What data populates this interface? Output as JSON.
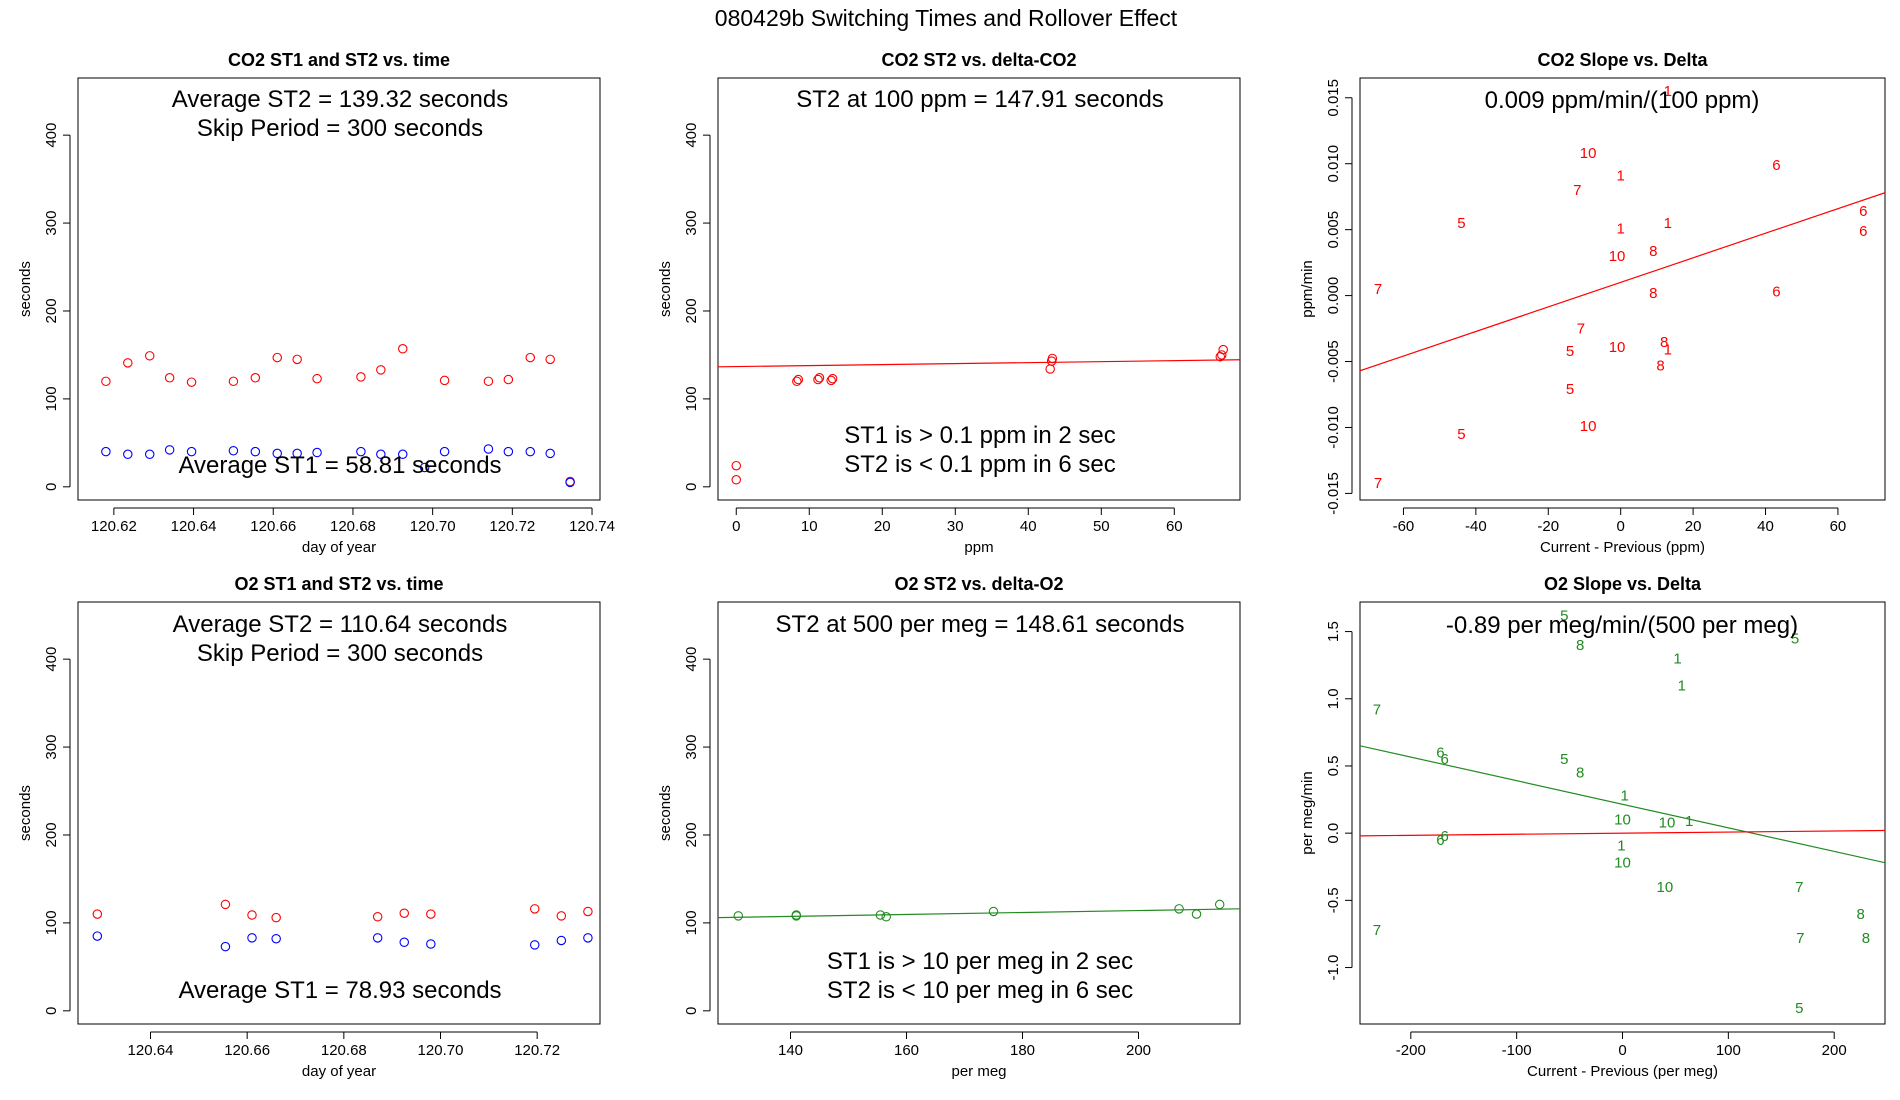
{
  "page_title": "080429b   Switching Times and Rollover Effect",
  "chart_data": [
    {
      "id": "p1",
      "type": "scatter",
      "title": "CO2 ST1 and ST2 vs. time",
      "xlabel": "day of year",
      "ylabel": "seconds",
      "xlim": [
        120.611,
        120.742
      ],
      "ylim": [
        -15,
        465
      ],
      "xticks": [
        120.62,
        120.64,
        120.66,
        120.68,
        120.7,
        120.72,
        120.74
      ],
      "xtick_labels": [
        "120.62",
        "120.64",
        "120.66",
        "120.68",
        "120.70",
        "120.72",
        "120.74"
      ],
      "yticks": [
        0,
        100,
        200,
        300,
        400
      ],
      "ytick_labels": [
        "0",
        "100",
        "200",
        "300",
        "400"
      ],
      "annotations": [
        "Average ST2 =  139.32  seconds",
        "Skip Period =  300  seconds",
        "Average ST1 =  58.81  seconds"
      ],
      "series": [
        {
          "color": "#ff0000",
          "x": [
            120.618,
            120.6235,
            120.629,
            120.634,
            120.6395,
            120.65,
            120.6555,
            120.661,
            120.666,
            120.671,
            120.682,
            120.687,
            120.6925,
            120.703,
            120.714,
            120.719,
            120.7245,
            120.7295,
            120.7345
          ],
          "y": [
            120,
            141,
            149,
            124,
            119,
            120,
            124,
            147,
            145,
            123,
            125,
            133,
            157,
            121,
            120,
            122,
            147,
            145,
            6
          ]
        },
        {
          "color": "#0000ff",
          "x": [
            120.618,
            120.6235,
            120.629,
            120.634,
            120.6395,
            120.65,
            120.6555,
            120.661,
            120.666,
            120.671,
            120.682,
            120.687,
            120.6925,
            120.698,
            120.703,
            120.714,
            120.719,
            120.7245,
            120.7295,
            120.7345
          ],
          "y": [
            40,
            37,
            37,
            42,
            40,
            41,
            40,
            38,
            38,
            39,
            40,
            37,
            37,
            22,
            40,
            43,
            40,
            40,
            38,
            5
          ]
        }
      ]
    },
    {
      "id": "p2",
      "type": "scatter",
      "title": "CO2 ST2 vs. delta-CO2",
      "xlabel": "ppm",
      "ylabel": "seconds",
      "xlim": [
        -2.5,
        69
      ],
      "ylim": [
        -15,
        465
      ],
      "xticks": [
        0,
        10,
        20,
        30,
        40,
        50,
        60
      ],
      "xtick_labels": [
        "0",
        "10",
        "20",
        "30",
        "40",
        "50",
        "60"
      ],
      "yticks": [
        0,
        100,
        200,
        300,
        400
      ],
      "ytick_labels": [
        "0",
        "100",
        "200",
        "300",
        "400"
      ],
      "annotations": [
        "ST2 at 100 ppm =  147.91  seconds",
        "ST1 is > 0.1 ppm in 2 sec",
        "ST2 is < 0.1 ppm in 6 sec"
      ],
      "series": [
        {
          "color": "#ff0000",
          "x": [
            0,
            0,
            8.3,
            8.5,
            11.2,
            11.4,
            13.0,
            13.2,
            43,
            43.2,
            43.3,
            66.3,
            66.5,
            66.7
          ],
          "y": [
            24,
            8,
            120,
            122,
            122,
            124,
            121,
            123,
            134,
            143,
            146,
            148,
            150,
            156
          ]
        }
      ],
      "fit_lines": [
        {
          "color": "#ff0000",
          "x": [
            -2.5,
            69
          ],
          "y": [
            136.5,
            144.5
          ]
        }
      ]
    },
    {
      "id": "p3",
      "type": "scatter",
      "title": "CO2 Slope vs. Delta",
      "xlabel": "Current - Previous (ppm)",
      "ylabel": "ppm/min",
      "xlim": [
        -72,
        73
      ],
      "ylim": [
        -0.0155,
        0.0165
      ],
      "xticks": [
        -60,
        -40,
        -20,
        0,
        20,
        40,
        60
      ],
      "xtick_labels": [
        "-60",
        "-40",
        "-20",
        "0",
        "20",
        "40",
        "60"
      ],
      "yticks": [
        -0.015,
        -0.01,
        -0.005,
        0.0,
        0.005,
        0.01,
        0.015
      ],
      "ytick_labels": [
        "-0.015",
        "-0.010",
        "-0.005",
        "0.000",
        "0.005",
        "0.010",
        "0.015"
      ],
      "annotations": [
        "0.009  ppm/min/(100 ppm)"
      ],
      "series": [
        {
          "color": "#ff0000",
          "x": [
            13,
            -9,
            -12,
            0,
            43,
            -44,
            0,
            13,
            -1,
            9,
            67,
            67,
            -67,
            9,
            43,
            -11,
            12,
            -1,
            13,
            -14,
            11,
            -14,
            -44,
            -9,
            -67
          ],
          "y": [
            0.0155,
            0.0108,
            0.008,
            0.0091,
            0.0099,
            0.0055,
            0.0051,
            0.0055,
            0.003,
            0.0034,
            0.0064,
            0.0049,
            0.0005,
            0.0002,
            0.0003,
            -0.0025,
            -0.0035,
            -0.0039,
            -0.0041,
            -0.0042,
            -0.0053,
            -0.0071,
            -0.0105,
            -0.0099,
            -0.0142
          ],
          "labels": [
            "1",
            "10",
            "7",
            "1",
            "6",
            "5",
            "1",
            "1",
            "10",
            "8",
            "6",
            "6",
            "7",
            "8",
            "6",
            "7",
            "8",
            "10",
            "1",
            "5",
            "8",
            "5",
            "5",
            "10",
            "7"
          ]
        }
      ],
      "fit_lines": [
        {
          "color": "#ff0000",
          "x": [
            -72,
            73
          ],
          "y": [
            -0.0057,
            0.0078
          ]
        }
      ]
    },
    {
      "id": "p4",
      "type": "scatter",
      "title": "O2 ST1 and ST2 vs. time",
      "xlabel": "day of year",
      "ylabel": "seconds",
      "xlim": [
        120.625,
        120.733
      ],
      "ylim": [
        -15,
        465
      ],
      "xticks": [
        120.64,
        120.66,
        120.68,
        120.7,
        120.72
      ],
      "xtick_labels": [
        "120.64",
        "120.66",
        "120.68",
        "120.70",
        "120.72"
      ],
      "yticks": [
        0,
        100,
        200,
        300,
        400
      ],
      "ytick_labels": [
        "0",
        "100",
        "200",
        "300",
        "400"
      ],
      "annotations": [
        "Average ST2 =  110.64  seconds",
        "Skip Period =  300  seconds",
        "Average ST1 =  78.93  seconds"
      ],
      "series": [
        {
          "color": "#ff0000",
          "x": [
            120.629,
            120.6555,
            120.661,
            120.666,
            120.687,
            120.6925,
            120.698,
            120.7195,
            120.725,
            120.7305
          ],
          "y": [
            110,
            121,
            109,
            106,
            107,
            111,
            110,
            116,
            108,
            113
          ]
        },
        {
          "color": "#0000ff",
          "x": [
            120.629,
            120.6555,
            120.661,
            120.666,
            120.687,
            120.6925,
            120.698,
            120.7195,
            120.725,
            120.7305
          ],
          "y": [
            85,
            73,
            83,
            82,
            83,
            78,
            76,
            75,
            80,
            83
          ]
        }
      ]
    },
    {
      "id": "p5",
      "type": "scatter",
      "title": "O2 ST2 vs. delta-O2",
      "xlabel": "per meg",
      "ylabel": "seconds",
      "xlim": [
        127.5,
        217.5
      ],
      "ylim": [
        -15,
        465
      ],
      "xticks": [
        140,
        160,
        180,
        200
      ],
      "xtick_labels": [
        "140",
        "160",
        "180",
        "200"
      ],
      "yticks": [
        0,
        100,
        200,
        300,
        400
      ],
      "ytick_labels": [
        "0",
        "100",
        "200",
        "300",
        "400"
      ],
      "annotations": [
        "ST2 at 500 per meg =  148.61  seconds",
        "ST1 is > 10 per meg in 2 sec",
        "ST2 is < 10 per meg in 6 sec"
      ],
      "series": [
        {
          "color": "#228B22",
          "x": [
            131,
            141,
            141,
            155.5,
            156.5,
            175,
            207,
            210,
            214
          ],
          "y": [
            108,
            108,
            109,
            109,
            107,
            113,
            116,
            110,
            121
          ]
        }
      ],
      "fit_lines": [
        {
          "color": "#228B22",
          "x": [
            127.5,
            217.5
          ],
          "y": [
            106,
            116
          ]
        }
      ]
    },
    {
      "id": "p6",
      "type": "scatter",
      "title": "O2 Slope vs. Delta",
      "xlabel": "Current - Previous (per meg)",
      "ylabel": "per meg/min",
      "xlim": [
        -248,
        248
      ],
      "ylim": [
        -1.42,
        1.72
      ],
      "xticks": [
        -200,
        -100,
        0,
        100,
        200
      ],
      "xtick_labels": [
        "-200",
        "-100",
        "0",
        "100",
        "200"
      ],
      "yticks": [
        -1.0,
        -0.5,
        0.0,
        0.5,
        1.0,
        1.5
      ],
      "ytick_labels": [
        "-1.0",
        "-0.5",
        "0.0",
        "0.5",
        "1.0",
        "1.5"
      ],
      "annotations": [
        "-0.89  per meg/min/(500 per meg)"
      ],
      "series": [
        {
          "color": "#228B22",
          "x": [
            -55,
            -40,
            52,
            56,
            163,
            -232,
            -172,
            -168,
            -55,
            -40,
            2,
            0,
            42,
            63,
            -172,
            -168,
            -1,
            0,
            40,
            167,
            225,
            230,
            -232,
            168,
            167
          ],
          "y": [
            1.62,
            1.4,
            1.3,
            1.1,
            1.45,
            0.92,
            0.6,
            0.55,
            0.55,
            0.45,
            0.28,
            0.1,
            0.08,
            0.09,
            -0.05,
            -0.02,
            -0.09,
            -0.22,
            -0.4,
            -0.4,
            -0.6,
            -0.78,
            -0.72,
            -0.78,
            -1.3
          ],
          "labels": [
            "5",
            "8",
            "1",
            "1",
            "5",
            "7",
            "6",
            "6",
            "5",
            "8",
            "1",
            "10",
            "10",
            "1",
            "6",
            "6",
            "1",
            "10",
            "10",
            "7",
            "8",
            "8",
            "7",
            "7",
            "5"
          ]
        }
      ],
      "fit_lines": [
        {
          "color": "#228B22",
          "x": [
            -248,
            248
          ],
          "y": [
            0.65,
            -0.22
          ]
        },
        {
          "color": "#ff0000",
          "x": [
            -248,
            248
          ],
          "y": [
            -0.02,
            0.02
          ]
        }
      ]
    }
  ]
}
